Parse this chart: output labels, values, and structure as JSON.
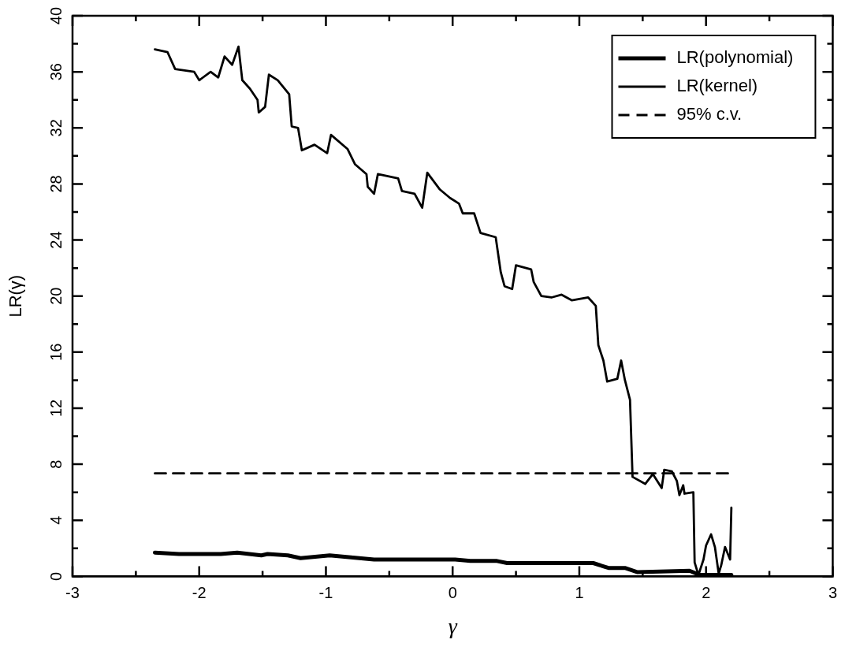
{
  "chart_data": {
    "type": "line",
    "xlabel": "γ",
    "ylabel": "LR(γ)",
    "xlim": [
      -3,
      3
    ],
    "ylim": [
      0,
      40
    ],
    "xticks": [
      -3,
      {
        "value": -2.5,
        "label": null
      },
      -2,
      {
        "value": -1.5,
        "label": null
      },
      -1,
      {
        "value": -0.5,
        "label": null
      },
      0,
      {
        "value": 0.5,
        "label": null
      },
      1,
      {
        "value": 1.5,
        "label": null
      },
      2,
      {
        "value": 2.5,
        "label": null
      },
      3
    ],
    "yticks": [
      0,
      {
        "value": 2,
        "label": null
      },
      4,
      {
        "value": 6,
        "label": null
      },
      8,
      {
        "value": 10,
        "label": null
      },
      12,
      {
        "value": 14,
        "label": null
      },
      16,
      {
        "value": 18,
        "label": null
      },
      20,
      {
        "value": 22,
        "label": null
      },
      24,
      {
        "value": 26,
        "label": null
      },
      28,
      {
        "value": 30,
        "label": null
      },
      32,
      {
        "value": 34,
        "label": null
      },
      36,
      {
        "value": 38,
        "label": null
      },
      40
    ],
    "grid": false,
    "legend": "top right",
    "marker": "none",
    "series": [
      {
        "name": "LR(polynomial)",
        "color": "#000000",
        "line_style": "solid",
        "x": [
          -2.35,
          -2.16,
          -1.83,
          -1.7,
          -1.51,
          -1.46,
          -1.3,
          -1.2,
          -0.97,
          -0.62,
          -0.21,
          0.02,
          0.14,
          0.35,
          0.43,
          1.11,
          1.23,
          1.36,
          1.46,
          1.87,
          1.95,
          2.2
        ],
        "values": [
          1.7,
          1.6,
          1.6,
          1.7,
          1.5,
          1.6,
          1.5,
          1.3,
          1.5,
          1.2,
          1.2,
          1.2,
          1.1,
          1.1,
          0.95,
          0.95,
          0.6,
          0.6,
          0.3,
          0.4,
          0.1,
          0.1
        ]
      },
      {
        "name": "LR(kernel)",
        "color": "#000000",
        "line_style": "solid",
        "x": [
          -2.35,
          -2.25,
          -2.19,
          -2.04,
          -2.0,
          -1.91,
          -1.85,
          -1.8,
          -1.74,
          -1.69,
          -1.66,
          -1.6,
          -1.54,
          -1.53,
          -1.48,
          -1.45,
          -1.38,
          -1.29,
          -1.27,
          -1.22,
          -1.19,
          -1.09,
          -0.99,
          -0.96,
          -0.83,
          -0.77,
          -0.68,
          -0.67,
          -0.62,
          -0.59,
          -0.43,
          -0.4,
          -0.3,
          -0.24,
          -0.2,
          -0.1,
          -0.02,
          0.05,
          0.08,
          0.17,
          0.22,
          0.34,
          0.38,
          0.41,
          0.47,
          0.5,
          0.62,
          0.64,
          0.7,
          0.78,
          0.86,
          0.94,
          1.07,
          1.13,
          1.15,
          1.19,
          1.22,
          1.3,
          1.33,
          1.36,
          1.4,
          1.42,
          1.52,
          1.58,
          1.65,
          1.67,
          1.73,
          1.77,
          1.79,
          1.82,
          1.83,
          1.9,
          1.91,
          1.94,
          1.98,
          2.0,
          2.04,
          2.07,
          2.1,
          2.12,
          2.15,
          2.19,
          2.2
        ],
        "values": [
          37.6,
          37.4,
          36.2,
          36.0,
          35.4,
          36.0,
          35.6,
          37.1,
          36.5,
          37.8,
          35.4,
          34.8,
          34.0,
          33.1,
          33.5,
          35.8,
          35.4,
          34.4,
          32.1,
          32.0,
          30.4,
          30.8,
          30.2,
          31.5,
          30.5,
          29.4,
          28.7,
          27.8,
          27.3,
          28.7,
          28.4,
          27.5,
          27.3,
          26.3,
          28.8,
          27.6,
          27.0,
          26.6,
          25.9,
          25.9,
          24.5,
          24.2,
          21.7,
          20.7,
          20.5,
          22.2,
          21.9,
          21.0,
          20.0,
          19.9,
          20.1,
          19.7,
          19.9,
          19.3,
          16.5,
          15.4,
          13.9,
          14.1,
          15.4,
          14.0,
          12.6,
          7.1,
          6.6,
          7.3,
          6.3,
          7.6,
          7.5,
          6.8,
          5.8,
          6.5,
          5.9,
          6.0,
          1.0,
          0.1,
          1.2,
          2.2,
          3.0,
          2.1,
          0.2,
          0.8,
          2.1,
          1.2,
          4.9
        ]
      },
      {
        "name": "95% c.v.",
        "color": "#000000",
        "line_style": "dashed",
        "x": [
          -2.35,
          2.2
        ],
        "values": [
          7.35,
          7.35
        ]
      }
    ]
  }
}
